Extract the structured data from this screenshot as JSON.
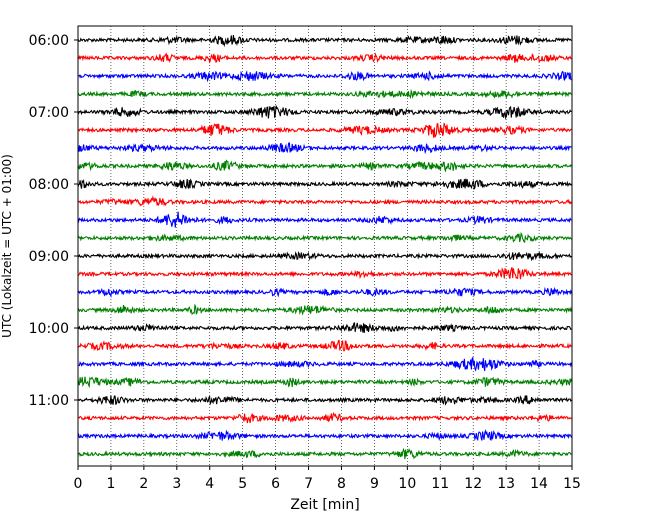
{
  "chart_data": {
    "type": "line",
    "title": "",
    "xlabel": "Zeit  [min]",
    "ylabel": "UTC (Lokalzeit = UTC + 01:00)",
    "xlim": [
      0,
      15
    ],
    "x_ticks": [
      0,
      1,
      2,
      3,
      4,
      5,
      6,
      7,
      8,
      9,
      10,
      11,
      12,
      13,
      14,
      15
    ],
    "x_tick_labels": [
      "0",
      "1",
      "2",
      "3",
      "4",
      "5",
      "6",
      "7",
      "8",
      "9",
      "10",
      "11",
      "12",
      "13",
      "14",
      "15"
    ],
    "y_tick_labels": [
      "06:00",
      "07:00",
      "08:00",
      "09:00",
      "10:00",
      "11:00"
    ],
    "grid": "vertical dotted lines at each minute",
    "trace_colors": [
      "#000000",
      "#ff0000",
      "#0000ff",
      "#008000"
    ],
    "traces": [
      {
        "start": "06:00",
        "color": "#000000"
      },
      {
        "start": "06:15",
        "color": "#ff0000"
      },
      {
        "start": "06:30",
        "color": "#0000ff"
      },
      {
        "start": "06:45",
        "color": "#008000"
      },
      {
        "start": "07:00",
        "color": "#000000"
      },
      {
        "start": "07:15",
        "color": "#ff0000"
      },
      {
        "start": "07:30",
        "color": "#0000ff"
      },
      {
        "start": "07:45",
        "color": "#008000"
      },
      {
        "start": "08:00",
        "color": "#000000"
      },
      {
        "start": "08:15",
        "color": "#ff0000"
      },
      {
        "start": "08:30",
        "color": "#0000ff"
      },
      {
        "start": "08:45",
        "color": "#008000"
      },
      {
        "start": "09:00",
        "color": "#000000"
      },
      {
        "start": "09:15",
        "color": "#ff0000"
      },
      {
        "start": "09:30",
        "color": "#0000ff"
      },
      {
        "start": "09:45",
        "color": "#008000"
      },
      {
        "start": "10:00",
        "color": "#000000"
      },
      {
        "start": "10:15",
        "color": "#ff0000"
      },
      {
        "start": "10:30",
        "color": "#0000ff"
      },
      {
        "start": "10:45",
        "color": "#008000"
      },
      {
        "start": "11:00",
        "color": "#000000"
      },
      {
        "start": "11:15",
        "color": "#ff0000"
      },
      {
        "start": "11:30",
        "color": "#0000ff"
      },
      {
        "start": "11:45",
        "color": "#008000"
      }
    ]
  }
}
